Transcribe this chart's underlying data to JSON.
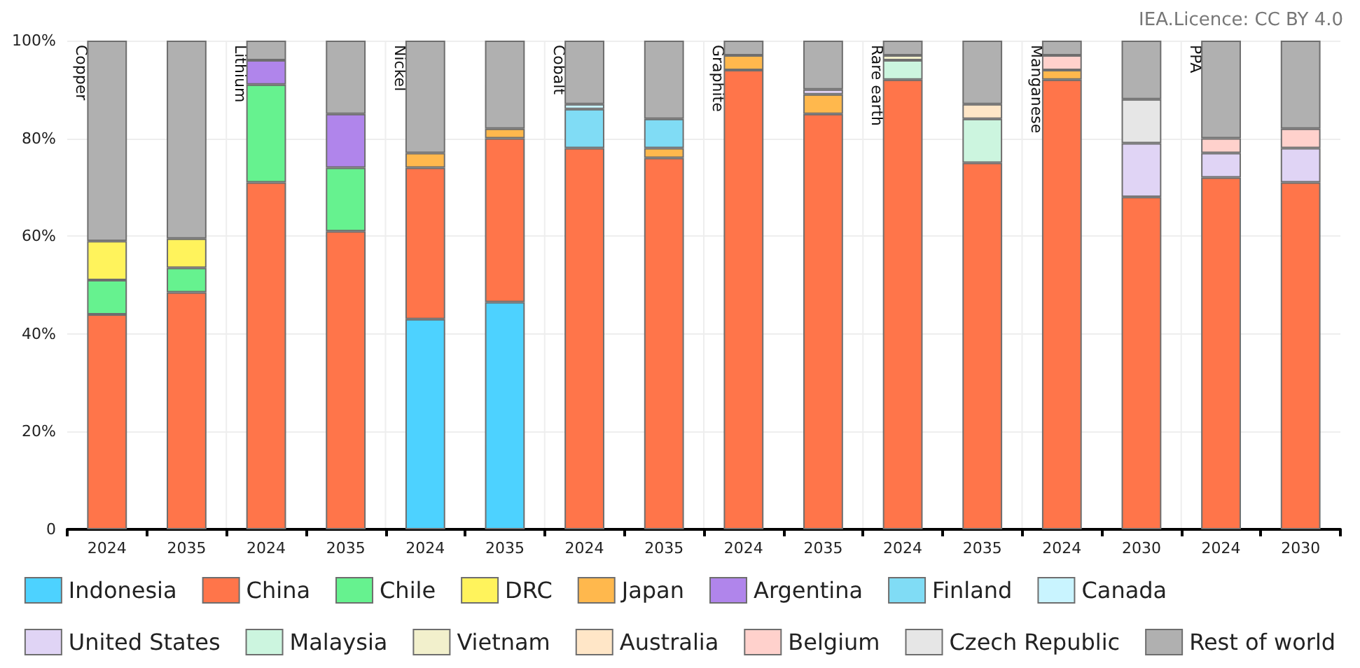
{
  "chart_data": {
    "type": "bar",
    "stacked": true,
    "categories": [
      "2024",
      "2035",
      "2024",
      "2035",
      "2024",
      "2035",
      "2024",
      "2035",
      "2024",
      "2035",
      "2024",
      "2035",
      "2024",
      "2030",
      "2024",
      "2030"
    ],
    "annotations": [
      "Copper",
      "Lithium",
      "Nickel",
      "Cobalt",
      "Graphite",
      "Rare earth",
      "Manganese",
      "PPA",
      "IEA.Licence: CC BY 4.0"
    ],
    "ylim": [
      0,
      100
    ],
    "yticks": [
      0,
      {
        "value": 20,
        "label": "20%"
      },
      {
        "value": 40,
        "label": "40%"
      },
      {
        "value": 60,
        "label": "60%"
      },
      {
        "value": 80,
        "label": "80%"
      },
      {
        "value": 100,
        "label": "100%"
      }
    ],
    "grid": "y",
    "legend": "bottom",
    "series": [
      {
        "name": "Indonesia",
        "color": "#4dd2ff",
        "values": [
          null,
          null,
          null,
          null,
          43,
          46.5,
          null,
          null,
          null,
          null,
          null,
          null,
          null,
          null,
          null,
          null
        ]
      },
      {
        "name": "China",
        "color": "#ff754a",
        "values": [
          44,
          48.5,
          71,
          61,
          31,
          33.5,
          78,
          76,
          94,
          85,
          92,
          75,
          92,
          68,
          72,
          71
        ]
      },
      {
        "name": "Chile",
        "color": "#66f28f",
        "values": [
          7,
          5,
          20,
          13,
          null,
          null,
          null,
          null,
          null,
          null,
          null,
          null,
          null,
          null,
          null,
          null
        ]
      },
      {
        "name": "DRC",
        "color": "#fff35c",
        "values": [
          8,
          6,
          null,
          null,
          null,
          null,
          null,
          null,
          null,
          null,
          null,
          null,
          null,
          null,
          null,
          null
        ]
      },
      {
        "name": "Japan",
        "color": "#ffb84d",
        "values": [
          null,
          null,
          null,
          null,
          3,
          2,
          null,
          2,
          3,
          4,
          null,
          null,
          2,
          null,
          null,
          null
        ]
      },
      {
        "name": "Argentina",
        "color": "#b085eb",
        "values": [
          null,
          null,
          5,
          11,
          null,
          null,
          null,
          null,
          null,
          null,
          null,
          null,
          null,
          null,
          null,
          null
        ]
      },
      {
        "name": "Finland",
        "color": "#80dcf5",
        "values": [
          null,
          null,
          null,
          null,
          null,
          null,
          8,
          6,
          null,
          null,
          null,
          null,
          null,
          null,
          null,
          null
        ]
      },
      {
        "name": "Canada",
        "color": "#c9f4ff",
        "values": [
          null,
          null,
          null,
          null,
          null,
          null,
          1,
          null,
          null,
          null,
          null,
          null,
          null,
          null,
          null,
          null
        ]
      },
      {
        "name": "United States",
        "color": "#e0d4f5",
        "values": [
          null,
          null,
          null,
          null,
          null,
          null,
          null,
          null,
          null,
          1,
          null,
          null,
          null,
          11,
          5,
          7
        ]
      },
      {
        "name": "Malaysia",
        "color": "#ccf5df",
        "values": [
          null,
          null,
          null,
          null,
          null,
          null,
          null,
          null,
          null,
          null,
          4,
          9,
          null,
          null,
          null,
          null
        ]
      },
      {
        "name": "Vietnam",
        "color": "#f2f0cc",
        "values": [
          null,
          null,
          null,
          null,
          null,
          null,
          null,
          null,
          null,
          null,
          1,
          null,
          null,
          null,
          null,
          null
        ]
      },
      {
        "name": "Australia",
        "color": "#ffe6c7",
        "values": [
          null,
          null,
          null,
          null,
          null,
          null,
          null,
          null,
          null,
          null,
          null,
          3,
          null,
          null,
          null,
          null
        ]
      },
      {
        "name": "Belgium",
        "color": "#ffd1cc",
        "values": [
          null,
          null,
          null,
          null,
          null,
          null,
          null,
          null,
          null,
          null,
          null,
          null,
          3,
          null,
          3,
          4
        ]
      },
      {
        "name": "Czech Republic",
        "color": "#e6e6e6",
        "values": [
          null,
          null,
          null,
          null,
          null,
          null,
          null,
          null,
          null,
          null,
          null,
          null,
          null,
          9,
          null,
          null
        ]
      },
      {
        "name": "Rest of world",
        "color": "#b0b0b0",
        "values": [
          41,
          40.5,
          4,
          15,
          23,
          18,
          13,
          16,
          3,
          10,
          3,
          13,
          3,
          12,
          20,
          18
        ]
      }
    ]
  }
}
